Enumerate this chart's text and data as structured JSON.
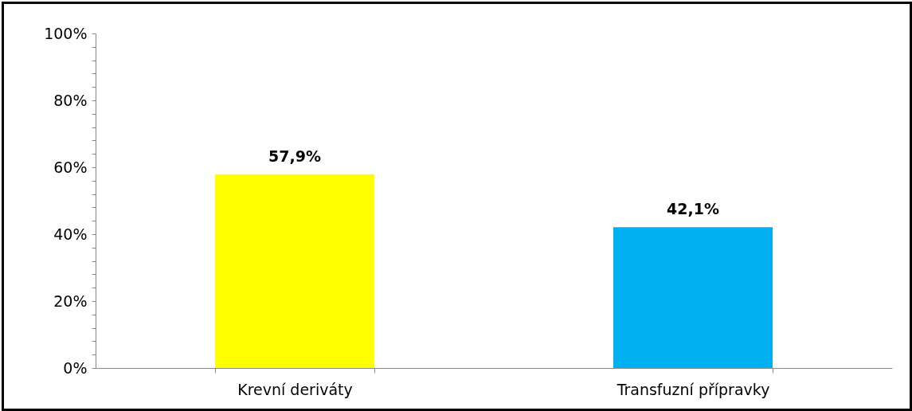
{
  "chart_data": {
    "type": "bar",
    "categories": [
      "Krevní deriváty",
      "Transfuzní přípravky"
    ],
    "values": [
      57.9,
      42.1
    ],
    "colors": [
      "#ffff00",
      "#00b0f0"
    ],
    "value_labels": [
      "57,9%",
      "42,1%"
    ],
    "ylim": [
      0,
      100
    ],
    "yticks": [
      {
        "value": 0,
        "label": "0%"
      },
      {
        "value": 4,
        "label": null
      },
      {
        "value": 8,
        "label": null
      },
      {
        "value": 12,
        "label": null
      },
      {
        "value": 16,
        "label": null
      },
      {
        "value": 20,
        "label": "20%"
      },
      {
        "value": 24,
        "label": null
      },
      {
        "value": 28,
        "label": null
      },
      {
        "value": 32,
        "label": null
      },
      {
        "value": 36,
        "label": null
      },
      {
        "value": 40,
        "label": "40%"
      },
      {
        "value": 44,
        "label": null
      },
      {
        "value": 48,
        "label": null
      },
      {
        "value": 52,
        "label": null
      },
      {
        "value": 56,
        "label": null
      },
      {
        "value": 60,
        "label": "60%"
      },
      {
        "value": 64,
        "label": null
      },
      {
        "value": 68,
        "label": null
      },
      {
        "value": 72,
        "label": null
      },
      {
        "value": 76,
        "label": null
      },
      {
        "value": 80,
        "label": "80%"
      },
      {
        "value": 84,
        "label": null
      },
      {
        "value": 88,
        "label": null
      },
      {
        "value": 92,
        "label": null
      },
      {
        "value": 96,
        "label": null
      },
      {
        "value": 100,
        "label": "100%"
      }
    ],
    "grid": false
  }
}
